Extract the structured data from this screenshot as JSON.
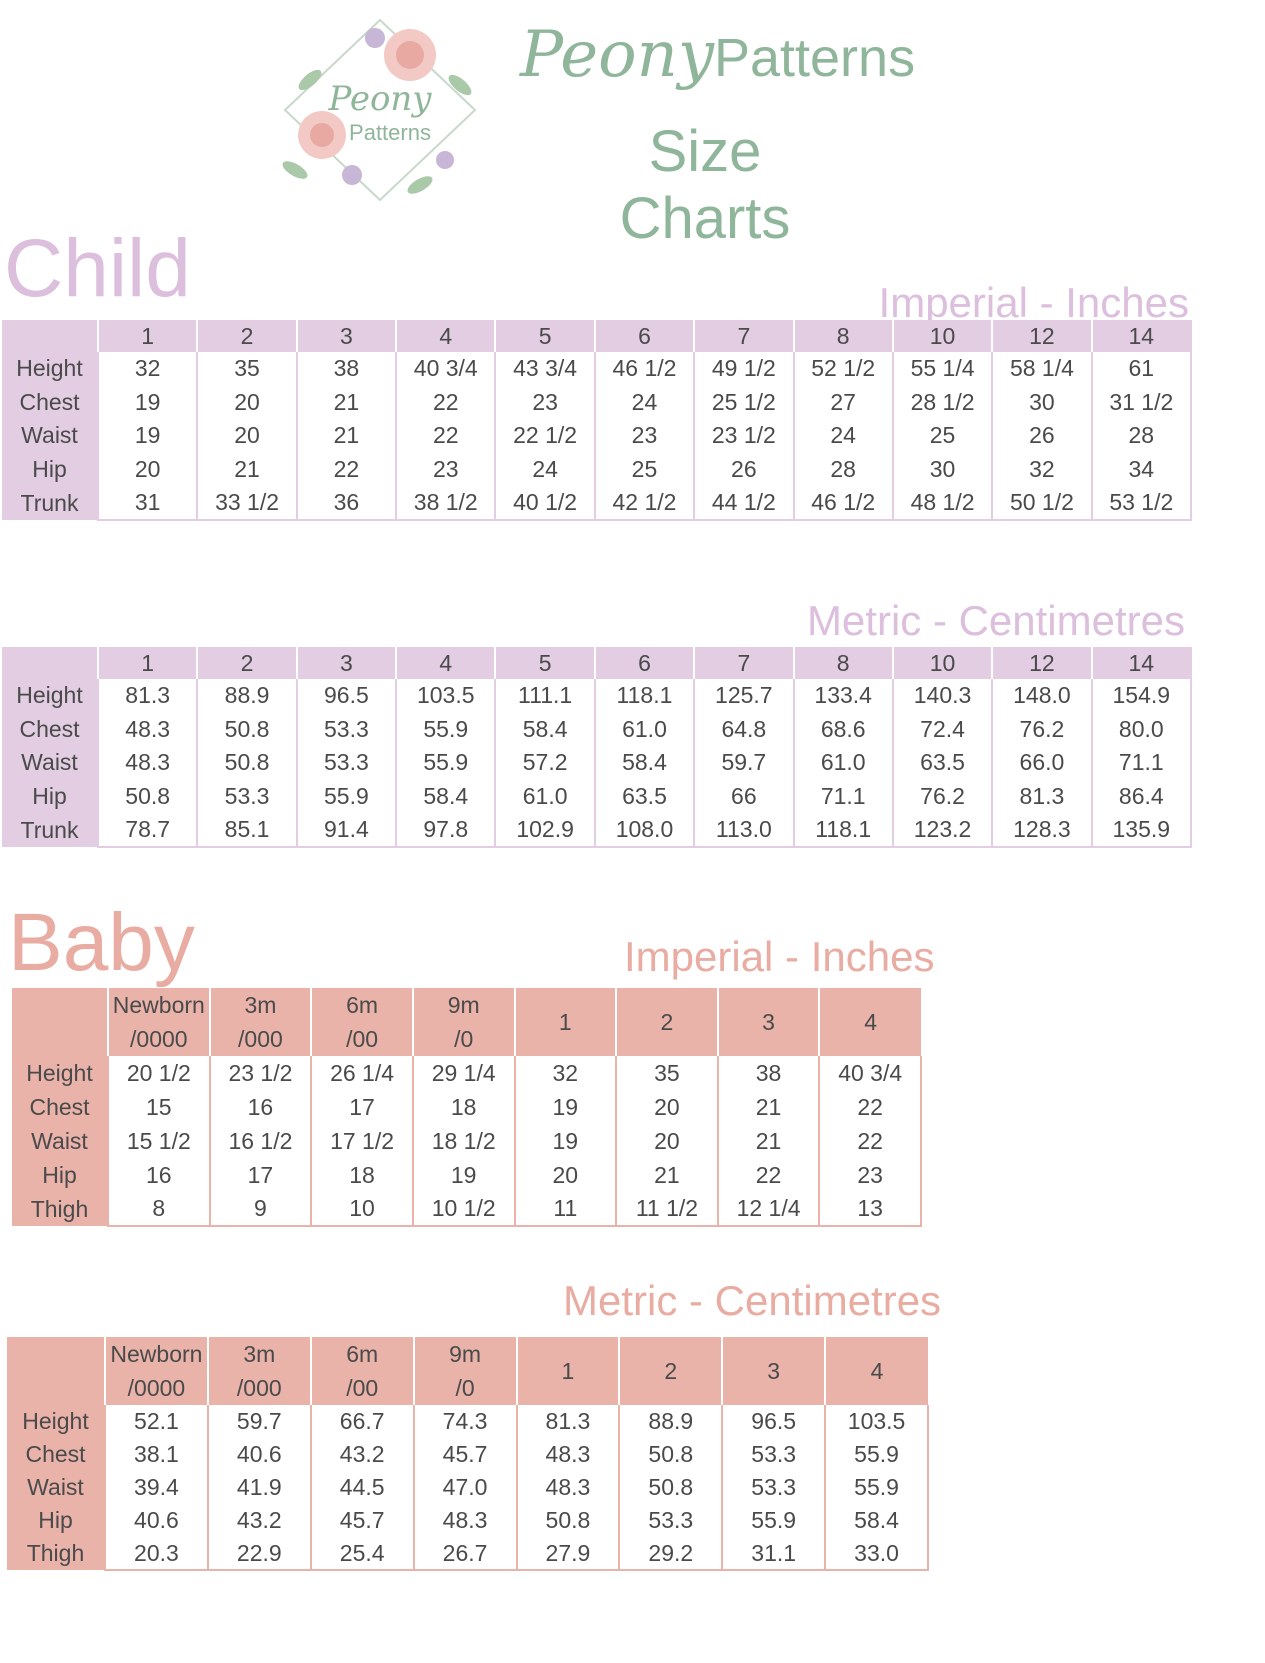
{
  "brand": {
    "name_script": "Peony",
    "name_plain": "Patterns",
    "subtitle": "Size Charts",
    "logo_script": "Peony",
    "logo_plain": "Patterns"
  },
  "colors": {
    "sage": "#8fb59a",
    "lilac": "#e2cde3",
    "lilac_text": "#dcbedd",
    "pink": "#e9b3aa",
    "pink_text": "#e8aca2"
  },
  "child": {
    "title": "Child",
    "imperial": {
      "label": "Imperial - Inches",
      "headers": [
        "1",
        "2",
        "3",
        "4",
        "5",
        "6",
        "7",
        "8",
        "10",
        "12",
        "14"
      ],
      "rows": [
        {
          "label": "Height",
          "values": [
            "32",
            "35",
            "38",
            "40 3/4",
            "43 3/4",
            "46 1/2",
            "49 1/2",
            "52 1/2",
            "55 1/4",
            "58 1/4",
            "61"
          ]
        },
        {
          "label": "Chest",
          "values": [
            "19",
            "20",
            "21",
            "22",
            "23",
            "24",
            "25 1/2",
            "27",
            "28 1/2",
            "30",
            "31 1/2"
          ]
        },
        {
          "label": "Waist",
          "values": [
            "19",
            "20",
            "21",
            "22",
            "22 1/2",
            "23",
            "23 1/2",
            "24",
            "25",
            "26",
            "28"
          ]
        },
        {
          "label": "Hip",
          "values": [
            "20",
            "21",
            "22",
            "23",
            "24",
            "25",
            "26",
            "28",
            "30",
            "32",
            "34"
          ]
        },
        {
          "label": "Trunk",
          "values": [
            "31",
            "33 1/2",
            "36",
            "38 1/2",
            "40 1/2",
            "42 1/2",
            "44 1/2",
            "46 1/2",
            "48 1/2",
            "50 1/2",
            "53 1/2"
          ]
        }
      ]
    },
    "metric": {
      "label": "Metric - Centimetres",
      "headers": [
        "1",
        "2",
        "3",
        "4",
        "5",
        "6",
        "7",
        "8",
        "10",
        "12",
        "14"
      ],
      "rows": [
        {
          "label": "Height",
          "values": [
            "81.3",
            "88.9",
            "96.5",
            "103.5",
            "111.1",
            "118.1",
            "125.7",
            "133.4",
            "140.3",
            "148.0",
            "154.9"
          ]
        },
        {
          "label": "Chest",
          "values": [
            "48.3",
            "50.8",
            "53.3",
            "55.9",
            "58.4",
            "61.0",
            "64.8",
            "68.6",
            "72.4",
            "76.2",
            "80.0"
          ]
        },
        {
          "label": "Waist",
          "values": [
            "48.3",
            "50.8",
            "53.3",
            "55.9",
            "57.2",
            "58.4",
            "59.7",
            "61.0",
            "63.5",
            "66.0",
            "71.1"
          ]
        },
        {
          "label": "Hip",
          "values": [
            "50.8",
            "53.3",
            "55.9",
            "58.4",
            "61.0",
            "63.5",
            "66",
            "71.1",
            "76.2",
            "81.3",
            "86.4"
          ]
        },
        {
          "label": "Trunk",
          "values": [
            "78.7",
            "85.1",
            "91.4",
            "97.8",
            "102.9",
            "108.0",
            "113.0",
            "118.1",
            "123.2",
            "128.3",
            "135.9"
          ]
        }
      ]
    }
  },
  "baby": {
    "title": "Baby",
    "imperial": {
      "label": "Imperial - Inches",
      "headers": [
        {
          "line1": "Newborn",
          "line2": "/0000"
        },
        {
          "line1": "3m",
          "line2": "/000"
        },
        {
          "line1": "6m",
          "line2": "/00"
        },
        {
          "line1": "9m",
          "line2": "/0"
        },
        {
          "line1": "1",
          "line2": ""
        },
        {
          "line1": "2",
          "line2": ""
        },
        {
          "line1": "3",
          "line2": ""
        },
        {
          "line1": "4",
          "line2": ""
        }
      ],
      "rows": [
        {
          "label": "Height",
          "values": [
            "20 1/2",
            "23 1/2",
            "26 1/4",
            "29 1/4",
            "32",
            "35",
            "38",
            "40 3/4"
          ]
        },
        {
          "label": "Chest",
          "values": [
            "15",
            "16",
            "17",
            "18",
            "19",
            "20",
            "21",
            "22"
          ]
        },
        {
          "label": "Waist",
          "values": [
            "15 1/2",
            "16 1/2",
            "17 1/2",
            "18 1/2",
            "19",
            "20",
            "21",
            "22"
          ]
        },
        {
          "label": "Hip",
          "values": [
            "16",
            "17",
            "18",
            "19",
            "20",
            "21",
            "22",
            "23"
          ]
        },
        {
          "label": "Thigh",
          "values": [
            "8",
            "9",
            "10",
            "10 1/2",
            "11",
            "11 1/2",
            "12 1/4",
            "13"
          ]
        }
      ]
    },
    "metric": {
      "label": "Metric - Centimetres",
      "headers": [
        {
          "line1": "Newborn",
          "line2": "/0000"
        },
        {
          "line1": "3m",
          "line2": "/000"
        },
        {
          "line1": "6m",
          "line2": "/00"
        },
        {
          "line1": "9m",
          "line2": "/0"
        },
        {
          "line1": "1",
          "line2": ""
        },
        {
          "line1": "2",
          "line2": ""
        },
        {
          "line1": "3",
          "line2": ""
        },
        {
          "line1": "4",
          "line2": ""
        }
      ],
      "rows": [
        {
          "label": "Height",
          "values": [
            "52.1",
            "59.7",
            "66.7",
            "74.3",
            "81.3",
            "88.9",
            "96.5",
            "103.5"
          ]
        },
        {
          "label": "Chest",
          "values": [
            "38.1",
            "40.6",
            "43.2",
            "45.7",
            "48.3",
            "50.8",
            "53.3",
            "55.9"
          ]
        },
        {
          "label": "Waist",
          "values": [
            "39.4",
            "41.9",
            "44.5",
            "47.0",
            "48.3",
            "50.8",
            "53.3",
            "55.9"
          ]
        },
        {
          "label": "Hip",
          "values": [
            "40.6",
            "43.2",
            "45.7",
            "48.3",
            "50.8",
            "53.3",
            "55.9",
            "58.4"
          ]
        },
        {
          "label": "Thigh",
          "values": [
            "20.3",
            "22.9",
            "25.4",
            "26.7",
            "27.9",
            "29.2",
            "31.1",
            "33.0"
          ]
        }
      ]
    }
  }
}
